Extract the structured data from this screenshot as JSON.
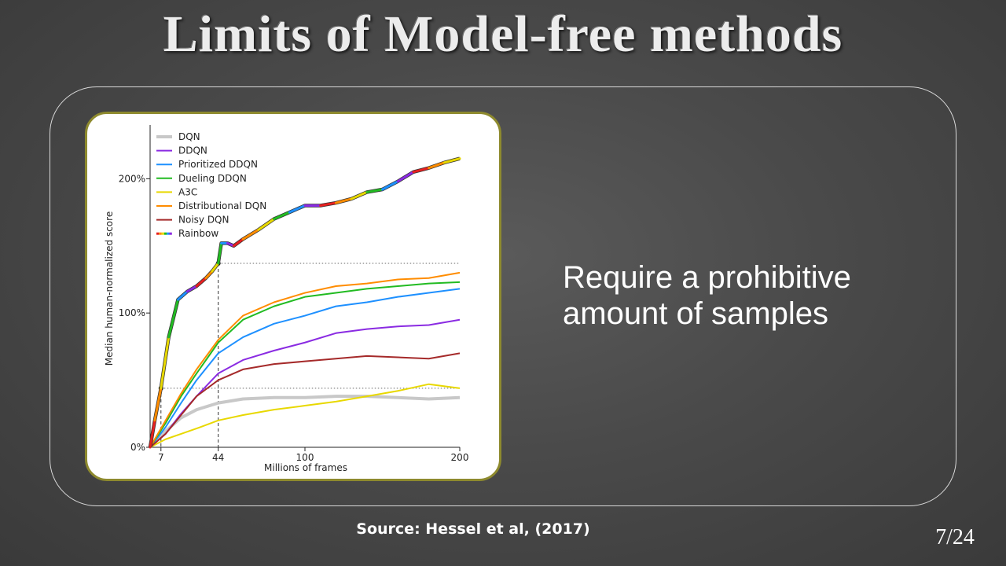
{
  "slide": {
    "title": "Limits of Model-free methods",
    "text_lines": [
      "Require a prohibitive",
      "amount of samples"
    ],
    "source": "Source: Hessel et al, (2017)",
    "page_number": "7/24"
  },
  "chart_data": {
    "type": "line",
    "xlabel": "Millions of frames",
    "ylabel": "Median human-normalized score",
    "xlim": [
      0,
      200
    ],
    "ylim": [
      0,
      240
    ],
    "x_ticks": [
      7,
      44,
      100,
      200
    ],
    "y_ticks": [
      {
        "value": 0,
        "label": "0%"
      },
      {
        "value": 100,
        "label": "100%"
      },
      {
        "value": 200,
        "label": "200%"
      }
    ],
    "reference_lines": [
      {
        "x": 7,
        "y": 44
      },
      {
        "x": 44,
        "y": 137
      }
    ],
    "legend_position": "top-left",
    "grid": false,
    "series": [
      {
        "name": "DQN",
        "color": "#c8c8c8",
        "width": 4,
        "x": [
          0,
          10,
          20,
          30,
          44,
          60,
          80,
          100,
          120,
          140,
          160,
          180,
          200
        ],
        "y": [
          0,
          12,
          22,
          28,
          33,
          36,
          37,
          37,
          38,
          38,
          37,
          36,
          37
        ]
      },
      {
        "name": "DDQN",
        "color": "#8a2be2",
        "width": 2,
        "x": [
          0,
          10,
          20,
          30,
          44,
          60,
          80,
          100,
          120,
          140,
          160,
          180,
          200
        ],
        "y": [
          0,
          10,
          25,
          38,
          55,
          65,
          72,
          78,
          85,
          88,
          90,
          91,
          95
        ]
      },
      {
        "name": "Prioritized DDQN",
        "color": "#1e90ff",
        "width": 2,
        "x": [
          0,
          10,
          20,
          30,
          44,
          60,
          80,
          100,
          120,
          140,
          160,
          180,
          200
        ],
        "y": [
          0,
          15,
          33,
          50,
          70,
          82,
          92,
          98,
          105,
          108,
          112,
          115,
          118
        ]
      },
      {
        "name": "Dueling DDQN",
        "color": "#22bb22",
        "width": 2,
        "x": [
          0,
          10,
          20,
          30,
          44,
          60,
          80,
          100,
          120,
          140,
          160,
          180,
          200
        ],
        "y": [
          0,
          18,
          38,
          55,
          78,
          95,
          105,
          112,
          115,
          118,
          120,
          122,
          123
        ]
      },
      {
        "name": "A3C",
        "color": "#e8d800",
        "width": 2,
        "x": [
          0,
          10,
          20,
          30,
          44,
          60,
          80,
          100,
          120,
          140,
          160,
          180,
          200
        ],
        "y": [
          0,
          6,
          10,
          14,
          20,
          24,
          28,
          31,
          34,
          38,
          42,
          47,
          44
        ]
      },
      {
        "name": "Distributional DQN",
        "color": "#ff8c00",
        "width": 2,
        "x": [
          0,
          10,
          20,
          30,
          44,
          60,
          80,
          100,
          120,
          140,
          160,
          180,
          200
        ],
        "y": [
          0,
          20,
          40,
          58,
          80,
          98,
          108,
          115,
          120,
          122,
          125,
          126,
          130
        ]
      },
      {
        "name": "Noisy DQN",
        "color": "#a52a2a",
        "width": 2,
        "x": [
          0,
          10,
          20,
          30,
          44,
          60,
          80,
          100,
          120,
          140,
          160,
          180,
          200
        ],
        "y": [
          0,
          10,
          24,
          38,
          50,
          58,
          62,
          64,
          66,
          68,
          67,
          66,
          70
        ]
      },
      {
        "name": "Rainbow",
        "color": "#2a6dd6",
        "width": 3,
        "multicolor": true,
        "x": [
          0,
          3,
          7,
          12,
          18,
          24,
          30,
          36,
          40,
          44,
          46,
          50,
          54,
          60,
          70,
          80,
          90,
          100,
          110,
          120,
          130,
          140,
          150,
          160,
          170,
          180,
          190,
          200
        ],
        "y": [
          0,
          20,
          44,
          82,
          110,
          116,
          120,
          126,
          131,
          137,
          152,
          152,
          150,
          155,
          162,
          170,
          175,
          180,
          180,
          182,
          185,
          190,
          192,
          198,
          205,
          208,
          212,
          215
        ]
      }
    ]
  }
}
